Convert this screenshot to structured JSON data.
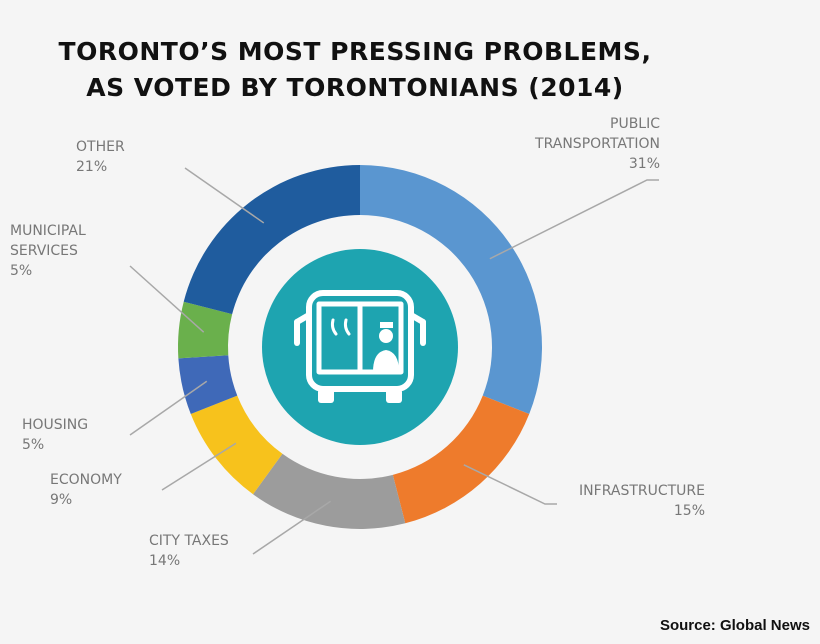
{
  "title": {
    "line1": "TORONTO’S MOST PRESSING PROBLEMS,",
    "line2": "AS VOTED BY TORONTONIANS (2014)"
  },
  "source": "Source: Global News",
  "center_icon": "bus-icon",
  "colors": {
    "background": "#f5f5f5",
    "center_circle": "#1ea4b0",
    "leader_line": "#a8a8a8",
    "label_text": "#777777"
  },
  "chart_data": {
    "type": "pie",
    "variant": "donut",
    "title": "TORONTO’S MOST PRESSING PROBLEMS, AS VOTED BY TORONTONIANS (2014)",
    "slices": [
      {
        "label_lines": [
          "PUBLIC",
          "TRANSPORTATION"
        ],
        "label": "PUBLIC TRANSPORTATION",
        "value": 31,
        "value_text": "31%",
        "color": "#5a96d0"
      },
      {
        "label_lines": [
          "INFRASTRUCTURE"
        ],
        "label": "INFRASTRUCTURE",
        "value": 15,
        "value_text": "15%",
        "color": "#ee7b2c"
      },
      {
        "label_lines": [
          "CITY TAXES"
        ],
        "label": "CITY TAXES",
        "value": 14,
        "value_text": "14%",
        "color": "#9c9c9c"
      },
      {
        "label_lines": [
          "ECONOMY"
        ],
        "label": "ECONOMY",
        "value": 9,
        "value_text": "9%",
        "color": "#f7c21c"
      },
      {
        "label_lines": [
          "HOUSING"
        ],
        "label": "HOUSING",
        "value": 5,
        "value_text": "5%",
        "color": "#3f69b8"
      },
      {
        "label_lines": [
          "MUNICIPAL",
          "SERVICES"
        ],
        "label": "MUNICIPAL SERVICES",
        "value": 5,
        "value_text": "5%",
        "color": "#6ab04c"
      },
      {
        "label_lines": [
          "OTHER"
        ],
        "label": "OTHER",
        "value": 21,
        "value_text": "21%",
        "color": "#1f5c9e"
      }
    ]
  }
}
